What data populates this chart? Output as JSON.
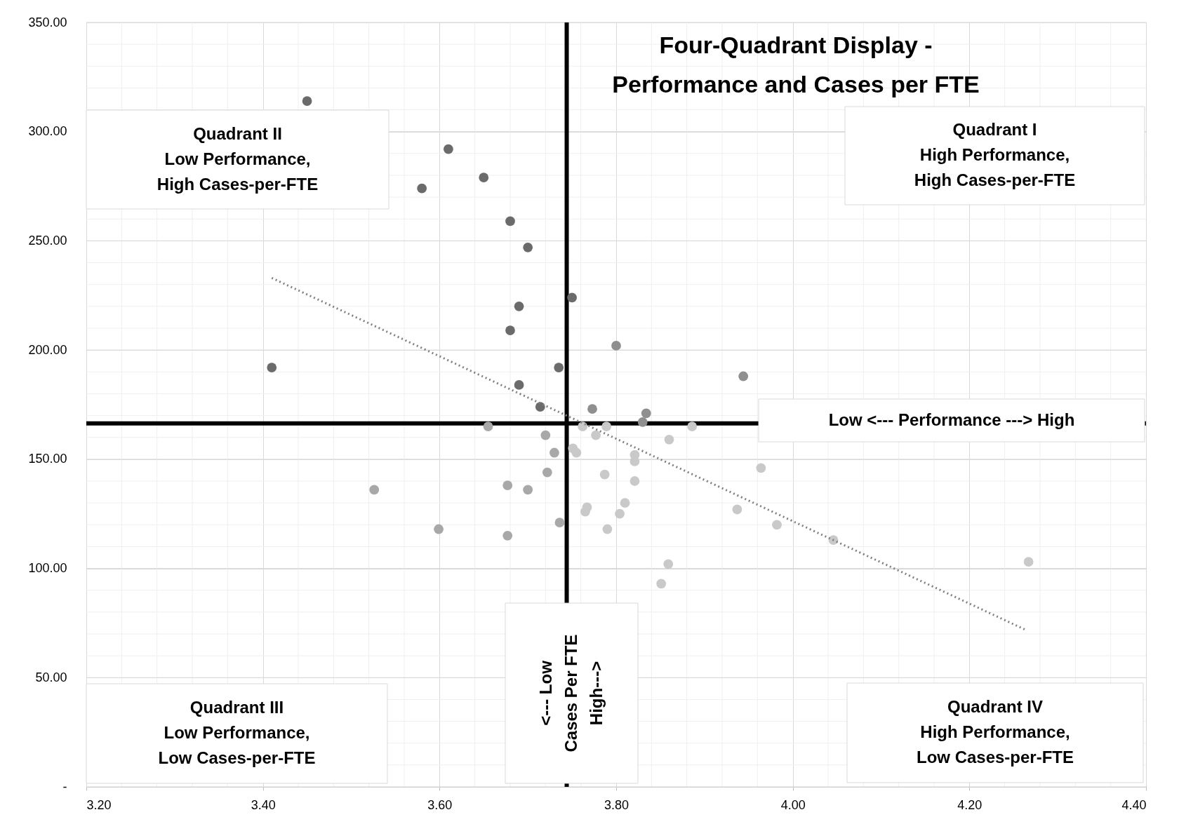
{
  "chart_data": {
    "type": "scatter",
    "title": "Four-Quadrant Display -\nPerformance and Cases per FTE",
    "xlim": [
      3.2,
      4.4
    ],
    "xticks": [
      {
        "value": 3.2,
        "label": "3.20"
      },
      {
        "value": 3.4,
        "label": "3.40"
      },
      {
        "value": 3.6,
        "label": "3.60"
      },
      {
        "value": 3.8,
        "label": "3.80"
      },
      {
        "value": 4.0,
        "label": "4.00"
      },
      {
        "value": 4.2,
        "label": "4.20"
      },
      {
        "value": 4.4,
        "label": "4.40"
      }
    ],
    "ylim": [
      0,
      350
    ],
    "yticks": [
      {
        "value": 0,
        "label": "-"
      },
      {
        "value": 50,
        "label": "50.00"
      },
      {
        "value": 100,
        "label": "100.00"
      },
      {
        "value": 150,
        "label": "150.00"
      },
      {
        "value": 200,
        "label": "200.00"
      },
      {
        "value": 250,
        "label": "250.00"
      },
      {
        "value": 300,
        "label": "300.00"
      },
      {
        "value": 350,
        "label": "350.00"
      }
    ],
    "grid": true,
    "legend": false,
    "marker": "circle",
    "series": [
      {
        "color": "#6b6b6b",
        "x": [
          3.45,
          3.61,
          3.58,
          3.65,
          3.68,
          3.7,
          3.69,
          3.68,
          3.41,
          3.735,
          3.69,
          3.714,
          3.75
        ],
        "values": [
          314,
          292,
          274,
          279,
          259,
          247,
          220,
          209,
          192,
          192,
          184,
          174,
          224
        ]
      },
      {
        "color": "#8f8f8f",
        "x": [
          3.773,
          3.834,
          3.83,
          3.944,
          3.8
        ],
        "values": [
          173,
          171,
          167,
          188,
          202
        ]
      },
      {
        "color": "#a8a8a8",
        "x": [
          3.655,
          3.72,
          3.73,
          3.722,
          3.677,
          3.7,
          3.526,
          3.736,
          3.599,
          3.677
        ],
        "values": [
          165,
          161,
          153,
          144,
          138,
          136,
          136,
          121,
          118,
          115
        ]
      },
      {
        "color": "#c9c9c9",
        "x": [
          3.762,
          3.789,
          3.777,
          3.751,
          3.755,
          3.86,
          3.886,
          3.821,
          3.821,
          3.787,
          3.821,
          3.81,
          3.767,
          3.765,
          3.804,
          3.79,
          3.859,
          3.851,
          3.964,
          3.937,
          3.982,
          4.046,
          4.267
        ],
        "values": [
          165,
          165,
          161,
          155,
          153,
          159,
          165,
          152,
          149,
          143,
          140,
          130,
          128,
          126,
          125,
          118,
          102,
          93,
          146,
          127,
          120,
          113,
          103
        ]
      },
      {
        "type": "line",
        "color": "#808080",
        "line_style": "dotted",
        "marker": "none",
        "x": [
          3.41,
          4.263
        ],
        "values": [
          233,
          72
        ]
      }
    ],
    "ref_lines": [
      {
        "axis": "x",
        "value": 3.744,
        "color": "#000000"
      },
      {
        "axis": "y",
        "value": 166.4,
        "color": "#000000"
      }
    ],
    "annotations": [
      "Quadrant II\nLow Performance,\nHigh Cases-per-FTE",
      "Quadrant I\nHigh Performance,\nHigh Cases-per-FTE",
      "Quadrant III\nLow Performance,\nLow Cases-per-FTE",
      "Quadrant IV\nHigh Performance,\nLow Cases-per-FTE",
      "Low <--- Performance ---> High",
      "<--- Low\nCases Per FTE\nHigh--->"
    ]
  }
}
